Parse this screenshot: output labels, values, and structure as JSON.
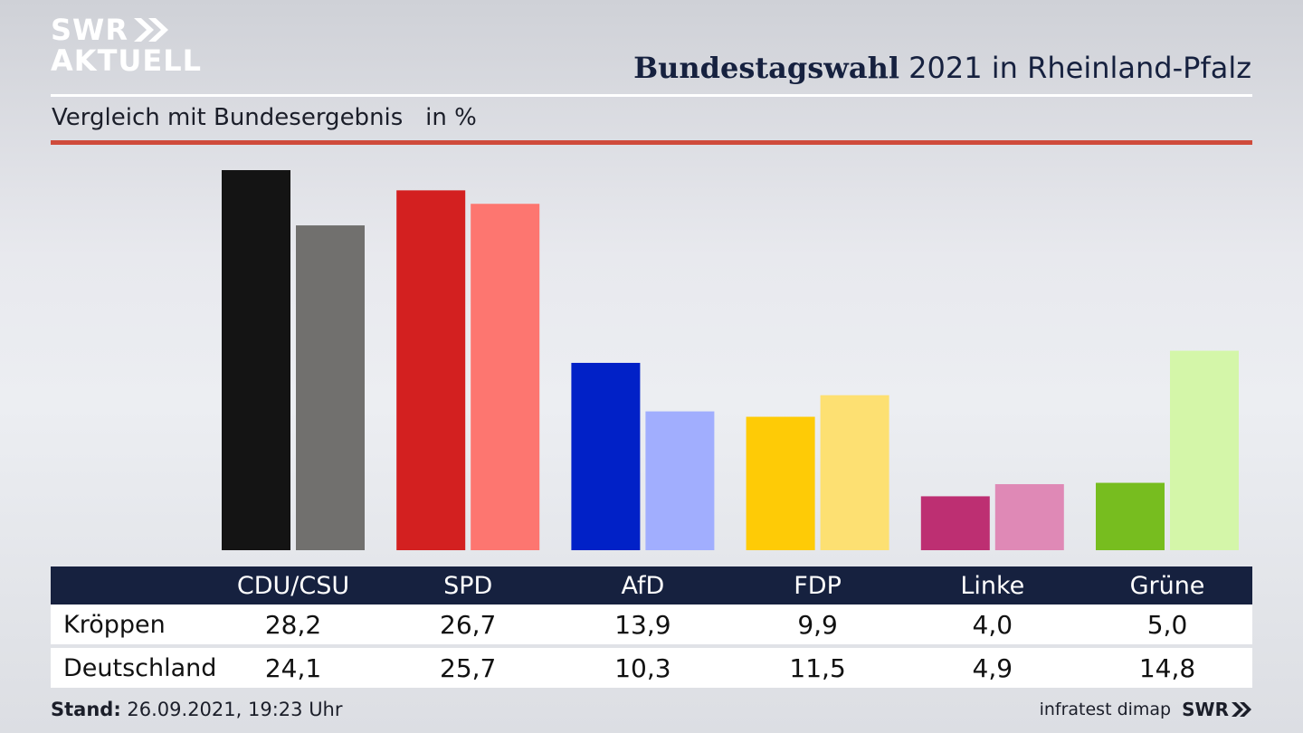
{
  "branding": {
    "logo_line1": "SWR",
    "logo_line2": "AKTUELL",
    "footer_brand": "SWR"
  },
  "header": {
    "title_bold": "Bundestagswahl",
    "title_rest": "2021 in Rheinland-Pfalz",
    "subtitle": "Vergleich mit Bundesergebnis   in %"
  },
  "chart_data": {
    "type": "bar",
    "title": "Bundestagswahl 2021 in Rheinland-Pfalz",
    "subtitle": "Vergleich mit Bundesergebnis   in %",
    "unit": "in %",
    "categories": [
      "CDU/CSU",
      "SPD",
      "AfD",
      "FDP",
      "Linke",
      "Grüne"
    ],
    "series": [
      {
        "name": "Kröppen",
        "values": [
          28.2,
          26.7,
          13.9,
          9.9,
          4.0,
          5.0
        ],
        "labels": [
          "28,2",
          "26,7",
          "13,9",
          "9,9",
          "4,0",
          "5,0"
        ],
        "colors": [
          "#141414",
          "#d32020",
          "#0121c7",
          "#fecb06",
          "#bd2f72",
          "#77bd1f"
        ]
      },
      {
        "name": "Deutschland",
        "values": [
          24.1,
          25.7,
          10.3,
          11.5,
          4.9,
          14.8
        ],
        "labels": [
          "24,1",
          "25,7",
          "10,3",
          "11,5",
          "4,9",
          "14,8"
        ],
        "colors": [
          "#71706e",
          "#fd7670",
          "#a1aefe",
          "#fde072",
          "#df89b6",
          "#d4f6a9"
        ]
      }
    ],
    "ylim": [
      0,
      28.2
    ],
    "grid": false,
    "legend": "table-below"
  },
  "footer": {
    "stand_label": "Stand:",
    "stand_value": "26.09.2021, 19:23 Uhr",
    "source": "infratest dimap"
  }
}
